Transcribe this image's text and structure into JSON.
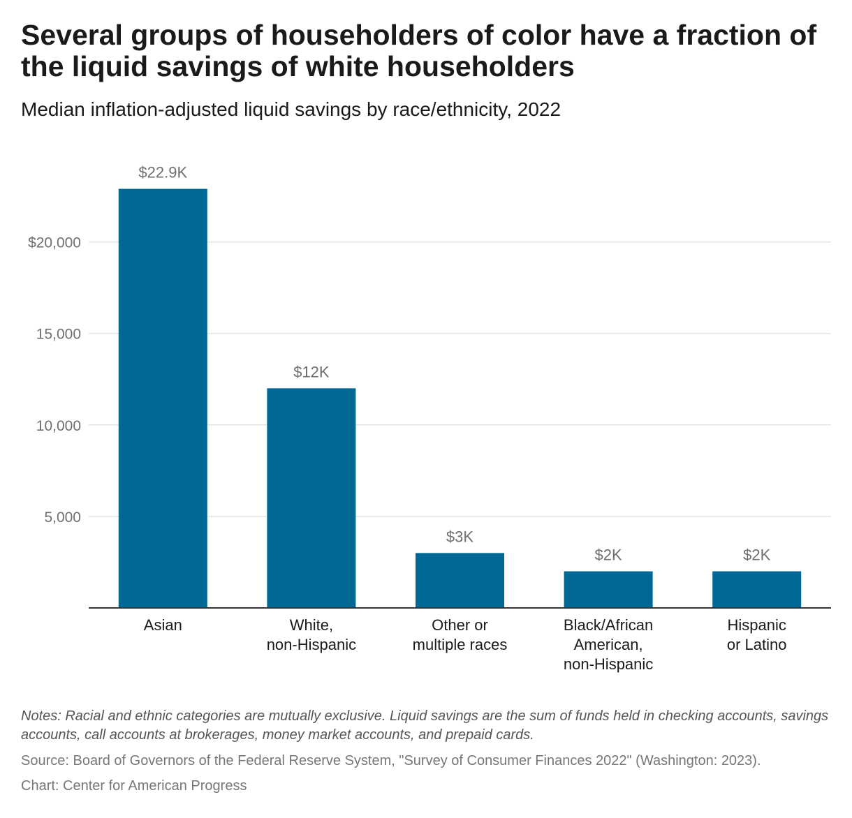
{
  "title": "Several groups of householders of color have a fraction of the liquid savings of white householders",
  "subtitle": "Median inflation-adjusted liquid savings by race/ethnicity, 2022",
  "notes": "Notes: Racial and ethnic categories are mutually exclusive. Liquid savings are the sum of funds held in checking accounts, savings accounts, call accounts at brokerages, money market accounts, and prepaid cards.",
  "source": "Source: Board of Governors of the Federal Reserve System, \"Survey of Consumer Finances 2022\" (Washington: 2023).",
  "credit": "Chart: Center for American Progress",
  "colors": {
    "bar": "#006894",
    "gridline": "#e3e3e3",
    "axis": "#333333"
  },
  "chart_data": {
    "type": "bar",
    "categories": [
      [
        "Asian"
      ],
      [
        "White,",
        "non-Hispanic"
      ],
      [
        "Other or",
        "multiple races"
      ],
      [
        "Black/African",
        "American,",
        "non-Hispanic"
      ],
      [
        "Hispanic",
        "or Latino"
      ]
    ],
    "values": [
      22900,
      12000,
      3000,
      2000,
      2000
    ],
    "value_labels": [
      "$22.9K",
      "$12K",
      "$3K",
      "$2K",
      "$2K"
    ],
    "yticks": [
      5000,
      10000,
      15000,
      20000
    ],
    "ytick_labels": [
      "5,000",
      "10,000",
      "15,000",
      "20,000"
    ],
    "ytick_top_prefix": "$",
    "ylim": [
      0,
      23000
    ],
    "grid": true,
    "xlabel": "",
    "ylabel": ""
  }
}
